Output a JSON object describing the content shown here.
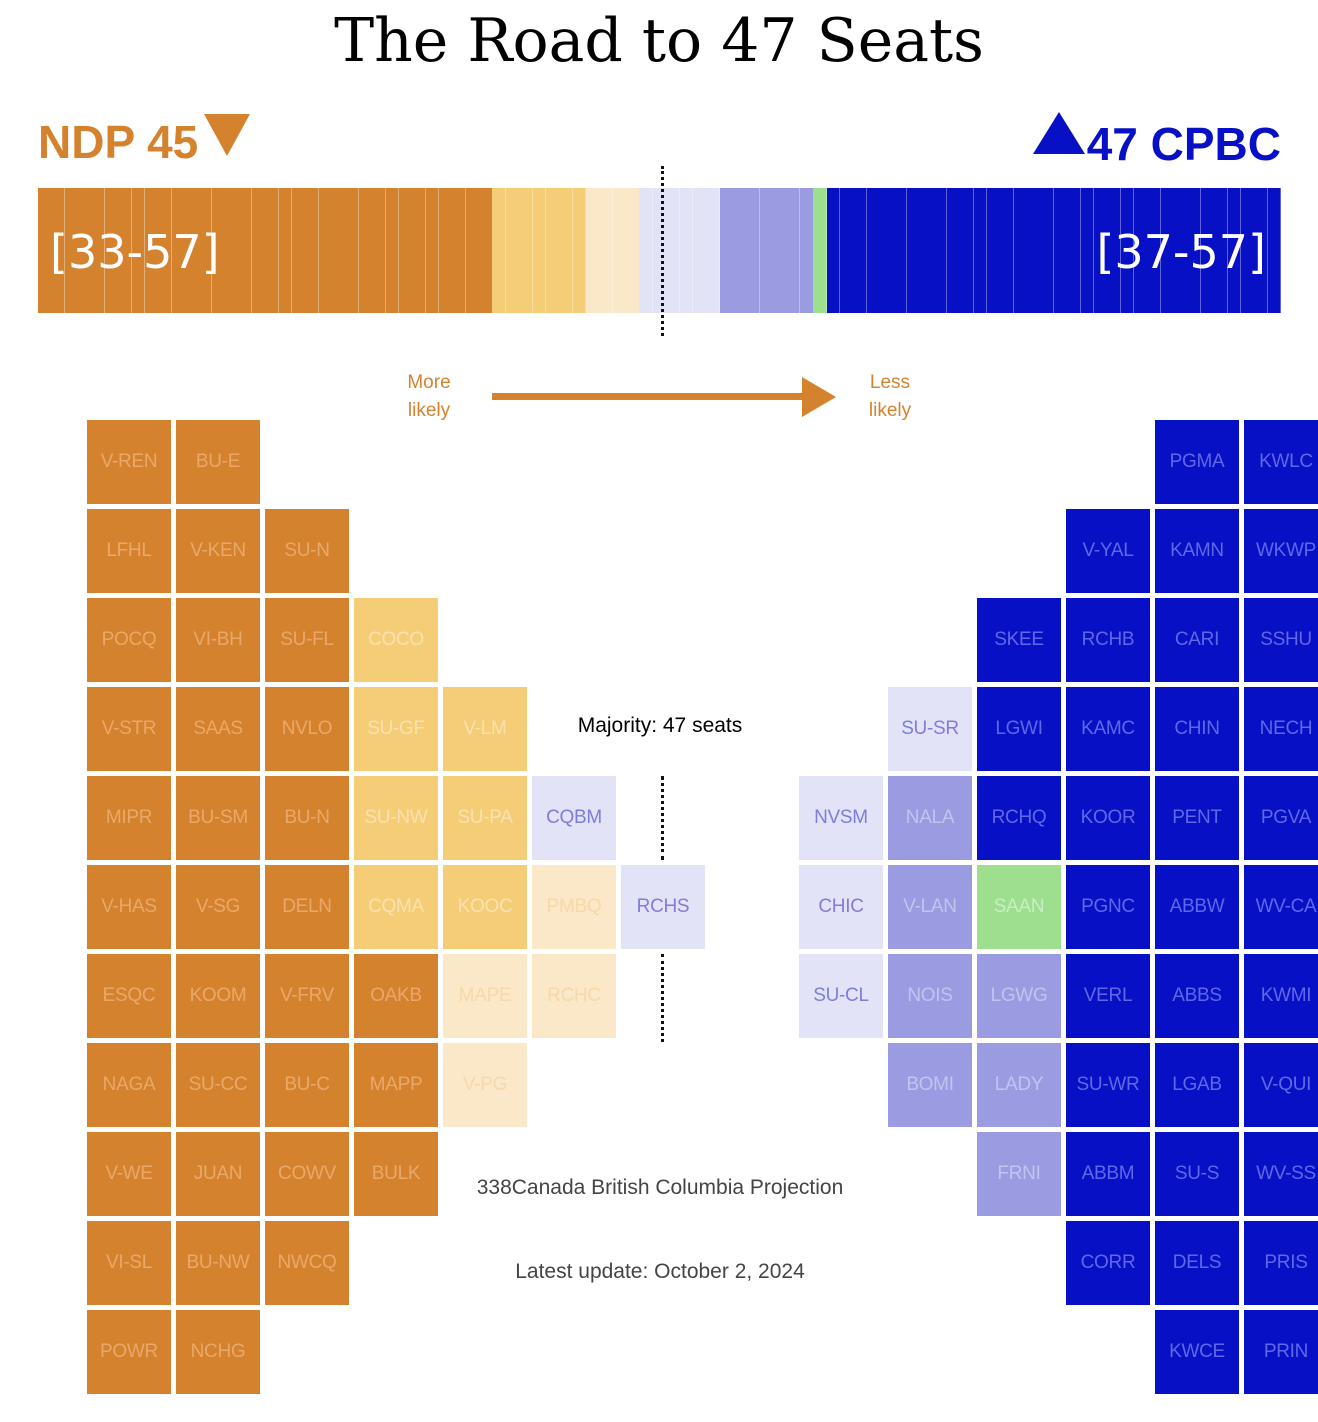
{
  "title": "The Road to 47 Seats",
  "left_party": {
    "label": "NDP 45",
    "range": "[33-57]"
  },
  "right_party": {
    "label": "47 CPBC",
    "range": "[37-57]"
  },
  "arrow": {
    "left_text": [
      "More",
      "likely"
    ],
    "right_text": [
      "Less",
      "likely"
    ]
  },
  "majority_text": "Majority: 47 seats",
  "source": "338Canada British Columbia Projection",
  "updated": "Latest update: October 2, 2024",
  "colors": {
    "ndp_safe": "#D5822F",
    "ndp_likely": "#F5CD76",
    "ndp_lean": "#FAE8C8",
    "cpbc_lean": "#E3E3F8",
    "cpbc_likely": "#9B9BE1",
    "cpbc_safe": "#0710C4",
    "grn": "#9DDE8F"
  },
  "chart_data": {
    "type": "seat-grid",
    "total_seats": 93,
    "majority": 47,
    "bar_segments": [
      {
        "category": "ndp_safe",
        "seats": 34
      },
      {
        "category": "ndp_likely",
        "seats": 7
      },
      {
        "category": "ndp_lean",
        "seats": 4
      },
      {
        "category": "cpbc_lean",
        "seats": 6
      },
      {
        "category": "cpbc_likely",
        "seats": 7
      },
      {
        "category": "grn",
        "seats": 1
      },
      {
        "category": "cpbc_safe",
        "seats": 34
      }
    ],
    "ridings": [
      {
        "id": "V-REN",
        "cat": "ndp_safe",
        "col": 0,
        "row": 0
      },
      {
        "id": "BU-E",
        "cat": "ndp_safe",
        "col": 1,
        "row": 0
      },
      {
        "id": "LFHL",
        "cat": "ndp_safe",
        "col": 0,
        "row": 1
      },
      {
        "id": "V-KEN",
        "cat": "ndp_safe",
        "col": 1,
        "row": 1
      },
      {
        "id": "SU-N",
        "cat": "ndp_safe",
        "col": 2,
        "row": 1
      },
      {
        "id": "POCQ",
        "cat": "ndp_safe",
        "col": 0,
        "row": 2
      },
      {
        "id": "VI-BH",
        "cat": "ndp_safe",
        "col": 1,
        "row": 2
      },
      {
        "id": "SU-FL",
        "cat": "ndp_safe",
        "col": 2,
        "row": 2
      },
      {
        "id": "COCO",
        "cat": "ndp_likely",
        "col": 3,
        "row": 2
      },
      {
        "id": "V-STR",
        "cat": "ndp_safe",
        "col": 0,
        "row": 3
      },
      {
        "id": "SAAS",
        "cat": "ndp_safe",
        "col": 1,
        "row": 3
      },
      {
        "id": "NVLO",
        "cat": "ndp_safe",
        "col": 2,
        "row": 3
      },
      {
        "id": "SU-GF",
        "cat": "ndp_likely",
        "col": 3,
        "row": 3
      },
      {
        "id": "V-LM",
        "cat": "ndp_likely",
        "col": 4,
        "row": 3
      },
      {
        "id": "MIPR",
        "cat": "ndp_safe",
        "col": 0,
        "row": 4
      },
      {
        "id": "BU-SM",
        "cat": "ndp_safe",
        "col": 1,
        "row": 4
      },
      {
        "id": "BU-N",
        "cat": "ndp_safe",
        "col": 2,
        "row": 4
      },
      {
        "id": "SU-NW",
        "cat": "ndp_likely",
        "col": 3,
        "row": 4
      },
      {
        "id": "SU-PA",
        "cat": "ndp_likely",
        "col": 4,
        "row": 4
      },
      {
        "id": "CQBM",
        "cat": "cpbc_lean",
        "col": 5,
        "row": 4
      },
      {
        "id": "V-HAS",
        "cat": "ndp_safe",
        "col": 0,
        "row": 5
      },
      {
        "id": "V-SG",
        "cat": "ndp_safe",
        "col": 1,
        "row": 5
      },
      {
        "id": "DELN",
        "cat": "ndp_safe",
        "col": 2,
        "row": 5
      },
      {
        "id": "CQMA",
        "cat": "ndp_likely",
        "col": 3,
        "row": 5
      },
      {
        "id": "KOOC",
        "cat": "ndp_likely",
        "col": 4,
        "row": 5
      },
      {
        "id": "PMBQ",
        "cat": "ndp_lean",
        "col": 5,
        "row": 5
      },
      {
        "id": "RCHS",
        "cat": "cpbc_lean",
        "col": 6,
        "row": 5
      },
      {
        "id": "ESQC",
        "cat": "ndp_safe",
        "col": 0,
        "row": 6
      },
      {
        "id": "KOOM",
        "cat": "ndp_safe",
        "col": 1,
        "row": 6
      },
      {
        "id": "V-FRV",
        "cat": "ndp_safe",
        "col": 2,
        "row": 6
      },
      {
        "id": "OAKB",
        "cat": "ndp_safe",
        "col": 3,
        "row": 6
      },
      {
        "id": "MAPE",
        "cat": "ndp_lean",
        "col": 4,
        "row": 6
      },
      {
        "id": "RCHC",
        "cat": "ndp_lean",
        "col": 5,
        "row": 6
      },
      {
        "id": "NAGA",
        "cat": "ndp_safe",
        "col": 0,
        "row": 7
      },
      {
        "id": "SU-CC",
        "cat": "ndp_safe",
        "col": 1,
        "row": 7
      },
      {
        "id": "BU-C",
        "cat": "ndp_safe",
        "col": 2,
        "row": 7
      },
      {
        "id": "MAPP",
        "cat": "ndp_safe",
        "col": 3,
        "row": 7
      },
      {
        "id": "V-PG",
        "cat": "ndp_lean",
        "col": 4,
        "row": 7
      },
      {
        "id": "V-WE",
        "cat": "ndp_safe",
        "col": 0,
        "row": 8
      },
      {
        "id": "JUAN",
        "cat": "ndp_safe",
        "col": 1,
        "row": 8
      },
      {
        "id": "COWV",
        "cat": "ndp_safe",
        "col": 2,
        "row": 8
      },
      {
        "id": "BULK",
        "cat": "ndp_safe",
        "col": 3,
        "row": 8
      },
      {
        "id": "VI-SL",
        "cat": "ndp_safe",
        "col": 0,
        "row": 9
      },
      {
        "id": "BU-NW",
        "cat": "ndp_safe",
        "col": 1,
        "row": 9
      },
      {
        "id": "NWCQ",
        "cat": "ndp_safe",
        "col": 2,
        "row": 9
      },
      {
        "id": "POWR",
        "cat": "ndp_safe",
        "col": 0,
        "row": 10
      },
      {
        "id": "NCHG",
        "cat": "ndp_safe",
        "col": 1,
        "row": 10
      },
      {
        "id": "PGMA",
        "cat": "cpbc_safe",
        "col": 12,
        "row": 0
      },
      {
        "id": "KWLC",
        "cat": "cpbc_safe",
        "col": 13,
        "row": 0
      },
      {
        "id": "V-YAL",
        "cat": "cpbc_safe",
        "col": 11,
        "row": 1
      },
      {
        "id": "KAMN",
        "cat": "cpbc_safe",
        "col": 12,
        "row": 1
      },
      {
        "id": "WKWP",
        "cat": "cpbc_safe",
        "col": 13,
        "row": 1
      },
      {
        "id": "SKEE",
        "cat": "cpbc_safe",
        "col": 10,
        "row": 2
      },
      {
        "id": "RCHB",
        "cat": "cpbc_safe",
        "col": 11,
        "row": 2
      },
      {
        "id": "CARI",
        "cat": "cpbc_safe",
        "col": 12,
        "row": 2
      },
      {
        "id": "SSHU",
        "cat": "cpbc_safe",
        "col": 13,
        "row": 2
      },
      {
        "id": "SU-SR",
        "cat": "cpbc_lean",
        "col": 9,
        "row": 3
      },
      {
        "id": "LGWI",
        "cat": "cpbc_safe",
        "col": 10,
        "row": 3
      },
      {
        "id": "KAMC",
        "cat": "cpbc_safe",
        "col": 11,
        "row": 3
      },
      {
        "id": "CHIN",
        "cat": "cpbc_safe",
        "col": 12,
        "row": 3
      },
      {
        "id": "NECH",
        "cat": "cpbc_safe",
        "col": 13,
        "row": 3
      },
      {
        "id": "NVSM",
        "cat": "cpbc_lean",
        "col": 8,
        "row": 4
      },
      {
        "id": "NALA",
        "cat": "cpbc_likely",
        "col": 9,
        "row": 4
      },
      {
        "id": "RCHQ",
        "cat": "cpbc_safe",
        "col": 10,
        "row": 4
      },
      {
        "id": "KOOR",
        "cat": "cpbc_safe",
        "col": 11,
        "row": 4
      },
      {
        "id": "PENT",
        "cat": "cpbc_safe",
        "col": 12,
        "row": 4
      },
      {
        "id": "PGVA",
        "cat": "cpbc_safe",
        "col": 13,
        "row": 4
      },
      {
        "id": "CHIC",
        "cat": "cpbc_lean",
        "col": 8,
        "row": 5
      },
      {
        "id": "V-LAN",
        "cat": "cpbc_likely",
        "col": 9,
        "row": 5
      },
      {
        "id": "SAAN",
        "cat": "grn",
        "col": 10,
        "row": 5
      },
      {
        "id": "PGNC",
        "cat": "cpbc_safe",
        "col": 11,
        "row": 5
      },
      {
        "id": "ABBW",
        "cat": "cpbc_safe",
        "col": 12,
        "row": 5
      },
      {
        "id": "WV-CA",
        "cat": "cpbc_safe",
        "col": 13,
        "row": 5
      },
      {
        "id": "SU-CL",
        "cat": "cpbc_lean",
        "col": 8,
        "row": 6
      },
      {
        "id": "NOIS",
        "cat": "cpbc_likely",
        "col": 9,
        "row": 6
      },
      {
        "id": "LGWG",
        "cat": "cpbc_likely",
        "col": 10,
        "row": 6
      },
      {
        "id": "VERL",
        "cat": "cpbc_safe",
        "col": 11,
        "row": 6
      },
      {
        "id": "ABBS",
        "cat": "cpbc_safe",
        "col": 12,
        "row": 6
      },
      {
        "id": "KWMI",
        "cat": "cpbc_safe",
        "col": 13,
        "row": 6
      },
      {
        "id": "BOMI",
        "cat": "cpbc_likely",
        "col": 9,
        "row": 7
      },
      {
        "id": "LADY",
        "cat": "cpbc_likely",
        "col": 10,
        "row": 7
      },
      {
        "id": "SU-WR",
        "cat": "cpbc_safe",
        "col": 11,
        "row": 7
      },
      {
        "id": "LGAB",
        "cat": "cpbc_safe",
        "col": 12,
        "row": 7
      },
      {
        "id": "V-QUI",
        "cat": "cpbc_safe",
        "col": 13,
        "row": 7
      },
      {
        "id": "FRNI",
        "cat": "cpbc_likely",
        "col": 10,
        "row": 8
      },
      {
        "id": "ABBM",
        "cat": "cpbc_safe",
        "col": 11,
        "row": 8
      },
      {
        "id": "SU-S",
        "cat": "cpbc_safe",
        "col": 12,
        "row": 8
      },
      {
        "id": "WV-SS",
        "cat": "cpbc_safe",
        "col": 13,
        "row": 8
      },
      {
        "id": "CORR",
        "cat": "cpbc_safe",
        "col": 11,
        "row": 9
      },
      {
        "id": "DELS",
        "cat": "cpbc_safe",
        "col": 12,
        "row": 9
      },
      {
        "id": "PRIS",
        "cat": "cpbc_safe",
        "col": 13,
        "row": 9
      },
      {
        "id": "KWCE",
        "cat": "cpbc_safe",
        "col": 12,
        "row": 10
      },
      {
        "id": "PRIN",
        "cat": "cpbc_safe",
        "col": 13,
        "row": 10
      }
    ]
  }
}
